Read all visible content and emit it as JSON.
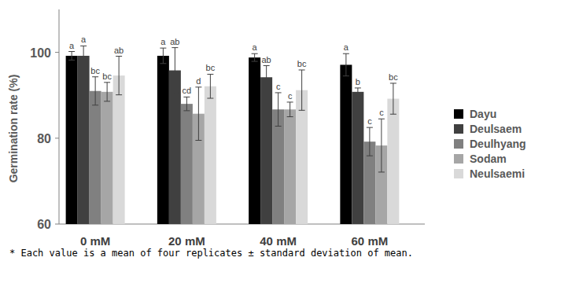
{
  "chart_data": {
    "type": "bar",
    "y_label": "Germination rate (%)",
    "footnote": "* Each value is a mean of four replicates ± standard deviation of mean.",
    "categories": [
      "0 mM",
      "20 mM",
      "40 mM",
      "60 mM"
    ],
    "ylim": [
      60,
      110
    ],
    "yticks": [
      60,
      80,
      100
    ],
    "grid": false,
    "legend": "right",
    "series": [
      {
        "name": "Dayu",
        "color": "#000000",
        "values": [
          99.2,
          99.2,
          98.8,
          97.1
        ],
        "errors": [
          1.0,
          1.8,
          0.9,
          2.6
        ],
        "letters": [
          "a",
          "a",
          "a",
          "a"
        ]
      },
      {
        "name": "Deulsaem",
        "color": "#404040",
        "values": [
          99.2,
          95.8,
          94.2,
          90.8
        ],
        "errors": [
          2.3,
          5.3,
          2.7,
          0.9
        ],
        "letters": [
          "a",
          "ab",
          "ab",
          "b"
        ]
      },
      {
        "name": "Deulhyang",
        "color": "#808080",
        "values": [
          91.0,
          88.0,
          86.7,
          79.2
        ],
        "errors": [
          3.3,
          1.6,
          3.9,
          3.3
        ],
        "letters": [
          "bc",
          "cd",
          "c",
          "c"
        ]
      },
      {
        "name": "Sodam",
        "color": "#a6a6a6",
        "values": [
          90.8,
          85.7,
          86.7,
          78.3
        ],
        "errors": [
          2.2,
          6.2,
          1.7,
          6.2
        ],
        "letters": [
          "bc",
          "d",
          "c",
          "c"
        ]
      },
      {
        "name": "Neulsaemi",
        "color": "#d9d9d9",
        "values": [
          94.6,
          92.1,
          91.2,
          89.2
        ],
        "errors": [
          4.5,
          2.8,
          4.7,
          3.6
        ],
        "letters": [
          "ab",
          "bc",
          "bc",
          "bc"
        ]
      }
    ]
  }
}
